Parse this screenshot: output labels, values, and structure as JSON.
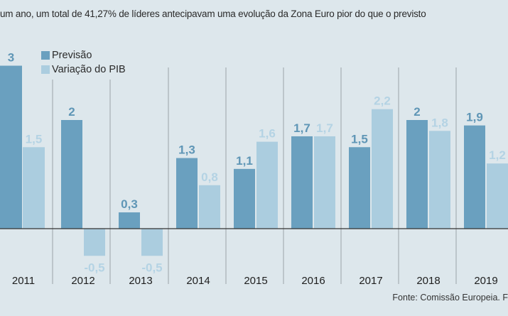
{
  "title": "um ano, um total de 41,27% de líderes antecipavam uma evolução da Zona Euro pior do que o previsto",
  "source": "Fonte: Comissão Europeia. F",
  "colors": {
    "previsao": "#6aa0bf",
    "variacao": "#abcddf",
    "previsao_label": "#5f96b6",
    "variacao_label": "#b4d3e4",
    "background": "#dde7ec"
  },
  "chart_data": {
    "type": "bar",
    "categories": [
      "2011",
      "2012",
      "2013",
      "2014",
      "2015",
      "2016",
      "2017",
      "2018",
      "2019"
    ],
    "series": [
      {
        "name": "Previsão",
        "values": [
          3,
          2,
          0.3,
          1.3,
          1.1,
          1.7,
          1.5,
          2,
          1.9
        ],
        "labels": [
          "3",
          "2",
          "0,3",
          "1,3",
          "1,1",
          "1,7",
          "1,5",
          "2",
          "1,9"
        ]
      },
      {
        "name": "Variação do PIB",
        "values": [
          1.5,
          -0.5,
          -0.5,
          0.8,
          1.6,
          1.7,
          2.2,
          1.8,
          1.2
        ],
        "labels": [
          "1,5",
          "-0,5",
          "-0,5",
          "0,8",
          "1,6",
          "1,7",
          "2,2",
          "1,8",
          "1,2"
        ]
      }
    ],
    "legend": "top-left",
    "grid": false
  }
}
